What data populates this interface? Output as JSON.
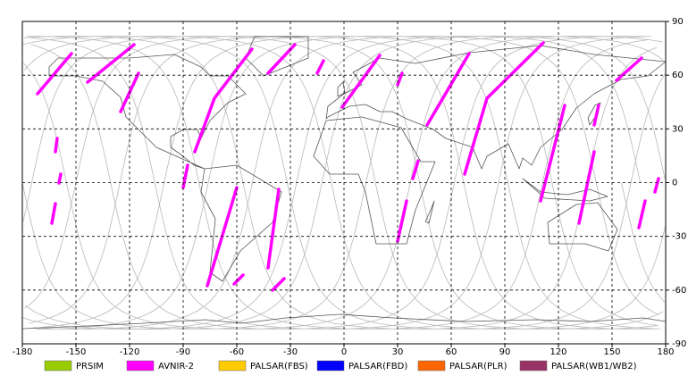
{
  "map": {
    "xlim": [
      -180,
      180
    ],
    "ylim": [
      -90,
      90
    ],
    "xticks": [
      -180,
      -150,
      -120,
      -90,
      -60,
      -30,
      0,
      30,
      60,
      90,
      120,
      150,
      180
    ],
    "yticks": [
      -90,
      -60,
      -30,
      0,
      30,
      60,
      90
    ],
    "grid": true
  },
  "legend": {
    "items": [
      {
        "label": "PRSIM",
        "color": "#99cc00"
      },
      {
        "label": "AVNIR-2",
        "color": "#ff00ff"
      },
      {
        "label": "PALSAR(FBS)",
        "color": "#ffcc00"
      },
      {
        "label": "PALSAR(FBD)",
        "color": "#0000ff"
      },
      {
        "label": "PALSAR(PLR)",
        "color": "#ff6600"
      },
      {
        "label": "PALSAR(WB1/WB2)",
        "color": "#993366"
      }
    ]
  }
}
